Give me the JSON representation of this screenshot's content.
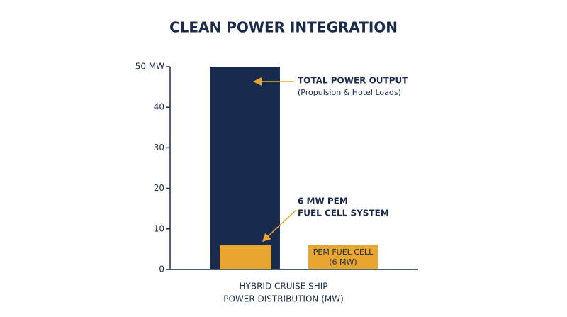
{
  "chart_data": {
    "type": "bar",
    "title": "CLEAN POWER INTEGRATION",
    "x_label": [
      "HYBRID CRUISE SHIP",
      "POWER DISTRIBUTION (MW)"
    ],
    "ylim": [
      0,
      50
    ],
    "yticks": [
      0,
      10,
      20,
      30,
      40,
      {
        "value": 50,
        "label": "50 MW"
      }
    ],
    "bars": [
      {
        "value": 50,
        "color": "#182b4e"
      },
      {
        "value": 6,
        "color": "#e8a530"
      },
      {
        "value": 6,
        "color": "#e8a530",
        "label": [
          "PEM FUEL CELL",
          "(6 MW)"
        ]
      }
    ],
    "annotations": [
      {
        "lines": [
          "TOTAL POWER OUTPUT",
          "(Propulsion & Hotel Loads)"
        ]
      },
      {
        "lines": [
          "6 MW PEM",
          "FUEL CELL SYSTEM"
        ]
      }
    ],
    "arrow_color": "#e8a530"
  }
}
